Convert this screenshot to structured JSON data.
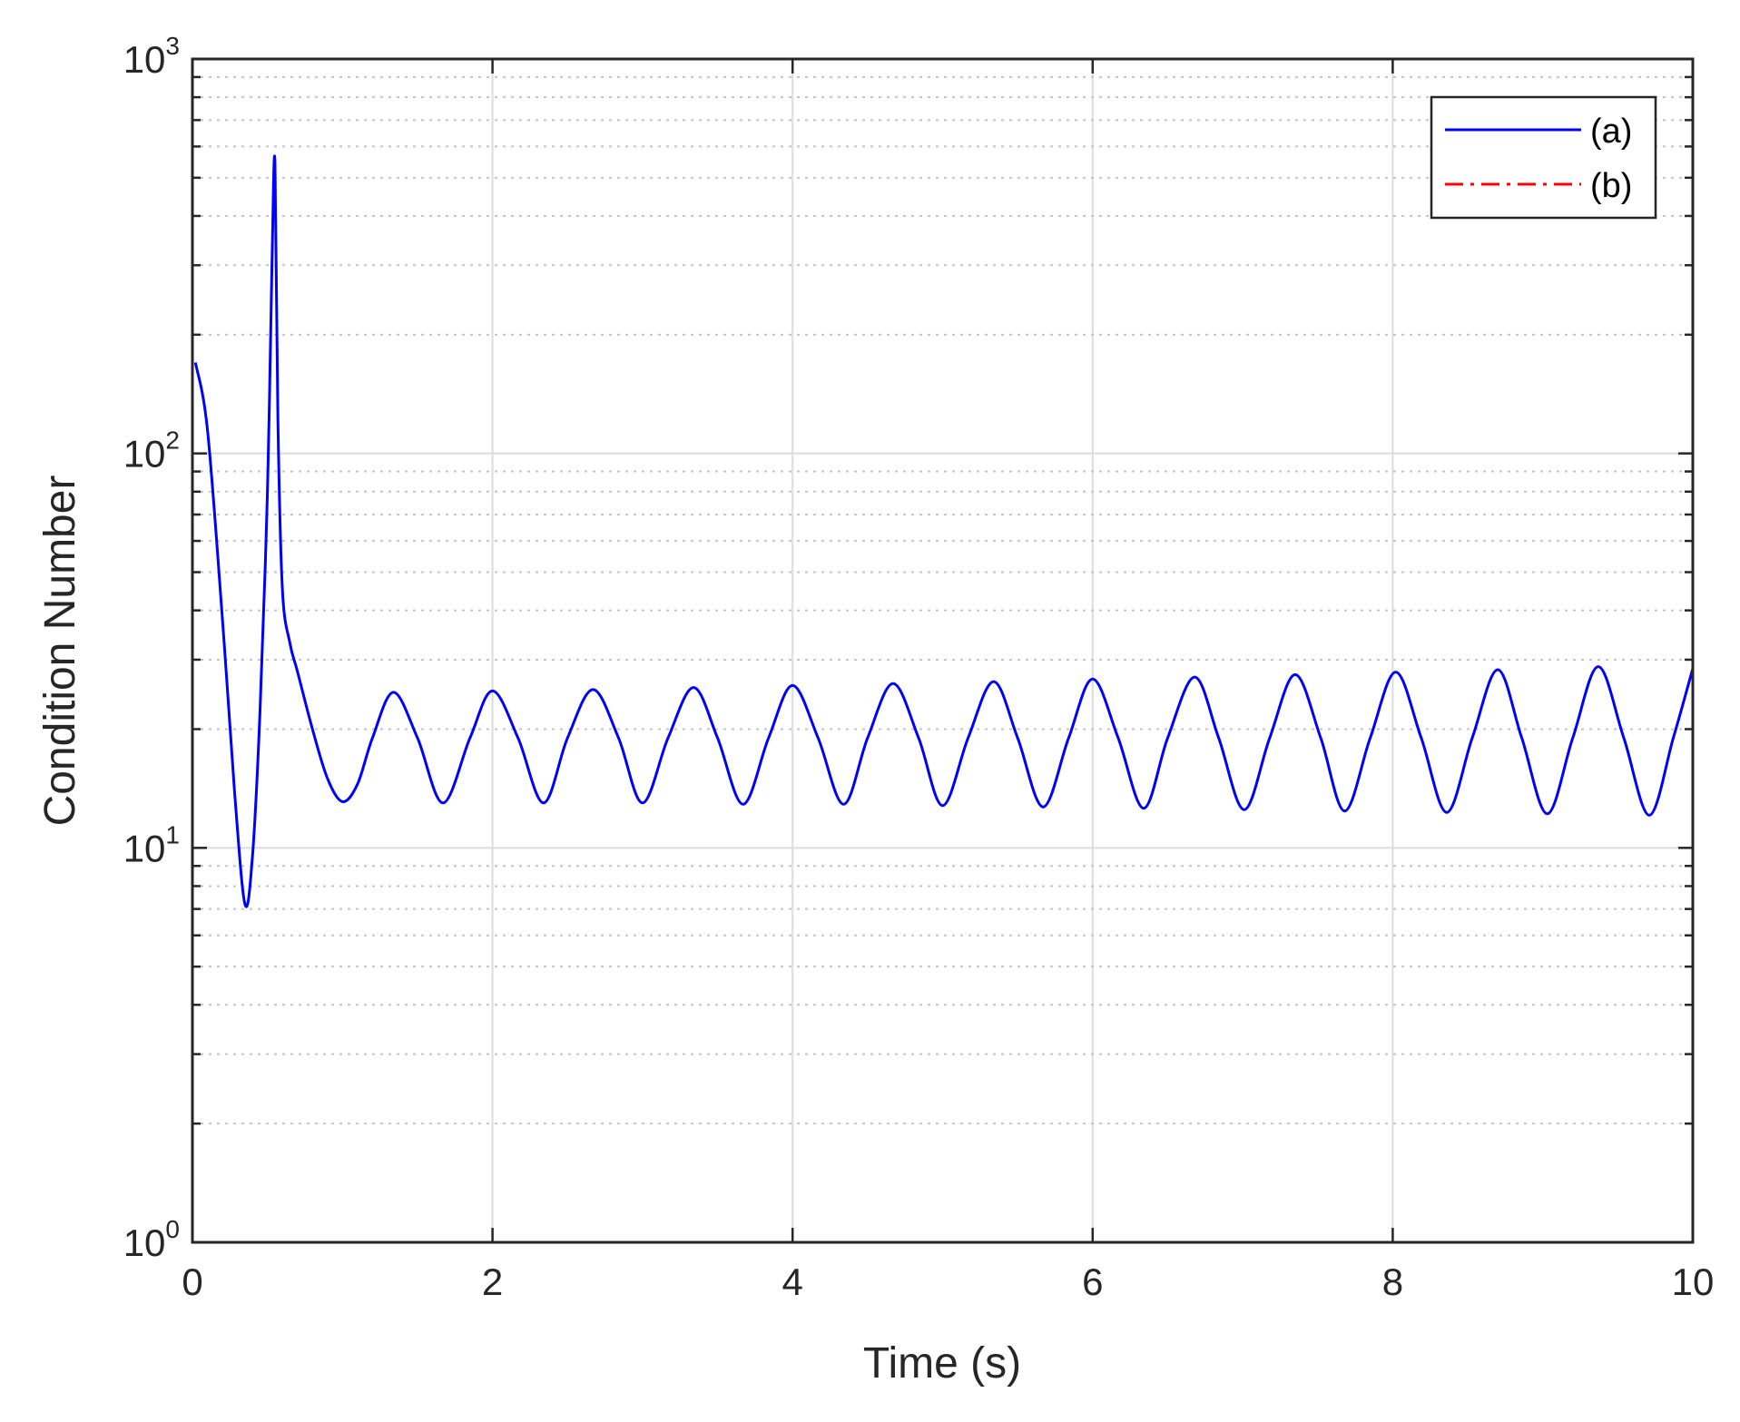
{
  "chart_data": {
    "type": "line",
    "xlabel": "Time (s)",
    "ylabel": "Condition Number",
    "xlim": [
      0,
      10
    ],
    "ylim": [
      1,
      1000
    ],
    "yscale": "log",
    "grid": true,
    "legend_position": "top-right",
    "x_ticks": [
      "0",
      "2",
      "4",
      "6",
      "8",
      "10"
    ],
    "y_ticks": [
      {
        "base": "10",
        "exp": "0"
      },
      {
        "base": "10",
        "exp": "1"
      },
      {
        "base": "10",
        "exp": "2"
      },
      {
        "base": "10",
        "exp": "3"
      }
    ],
    "series": [
      {
        "name": "(a)",
        "color": "#0000ff",
        "style": "solid",
        "points": [
          [
            0.02,
            170
          ],
          [
            0.1,
            115
          ],
          [
            0.2,
            38
          ],
          [
            0.28,
            14
          ],
          [
            0.35,
            7.2
          ],
          [
            0.4,
            9.5
          ],
          [
            0.45,
            22
          ],
          [
            0.5,
            80
          ],
          [
            0.53,
            300
          ],
          [
            0.55,
            550
          ],
          [
            0.57,
            120
          ],
          [
            0.6,
            45
          ],
          [
            0.65,
            33
          ],
          [
            0.7,
            28
          ],
          [
            0.8,
            20
          ],
          [
            0.9,
            15
          ],
          [
            1.0,
            13.1
          ],
          [
            1.1,
            14.5
          ],
          [
            1.2,
            19
          ],
          [
            1.34,
            24.8
          ],
          [
            1.5,
            19
          ],
          [
            1.67,
            13
          ],
          [
            1.85,
            19
          ],
          [
            2.0,
            25
          ],
          [
            2.17,
            19
          ],
          [
            2.34,
            13
          ],
          [
            2.5,
            19
          ],
          [
            2.67,
            25.2
          ],
          [
            2.84,
            19
          ],
          [
            3.0,
            13
          ],
          [
            3.17,
            19
          ],
          [
            3.34,
            25.5
          ],
          [
            3.5,
            19
          ],
          [
            3.67,
            12.9
          ],
          [
            3.84,
            19
          ],
          [
            4.0,
            25.8
          ],
          [
            4.17,
            19
          ],
          [
            4.34,
            12.9
          ],
          [
            4.5,
            19
          ],
          [
            4.67,
            26.1
          ],
          [
            4.84,
            19
          ],
          [
            5.0,
            12.8
          ],
          [
            5.17,
            19
          ],
          [
            5.34,
            26.4
          ],
          [
            5.5,
            19
          ],
          [
            5.67,
            12.7
          ],
          [
            5.84,
            19
          ],
          [
            6.0,
            26.8
          ],
          [
            6.17,
            19
          ],
          [
            6.34,
            12.6
          ],
          [
            6.5,
            19
          ],
          [
            6.68,
            27.1
          ],
          [
            6.84,
            19
          ],
          [
            7.01,
            12.5
          ],
          [
            7.18,
            19
          ],
          [
            7.35,
            27.5
          ],
          [
            7.52,
            19
          ],
          [
            7.68,
            12.4
          ],
          [
            7.85,
            19
          ],
          [
            8.02,
            27.9
          ],
          [
            8.19,
            19
          ],
          [
            8.36,
            12.3
          ],
          [
            8.53,
            19
          ],
          [
            8.7,
            28.3
          ],
          [
            8.86,
            19
          ],
          [
            9.03,
            12.2
          ],
          [
            9.2,
            19
          ],
          [
            9.37,
            28.8
          ],
          [
            9.54,
            19
          ],
          [
            9.71,
            12.1
          ],
          [
            9.87,
            19
          ],
          [
            10.0,
            28.5
          ]
        ]
      },
      {
        "name": "(b)",
        "color": "#ff0000",
        "style": "dash-dot",
        "points": [
          [
            0,
            1
          ],
          [
            10,
            1
          ]
        ]
      }
    ]
  }
}
